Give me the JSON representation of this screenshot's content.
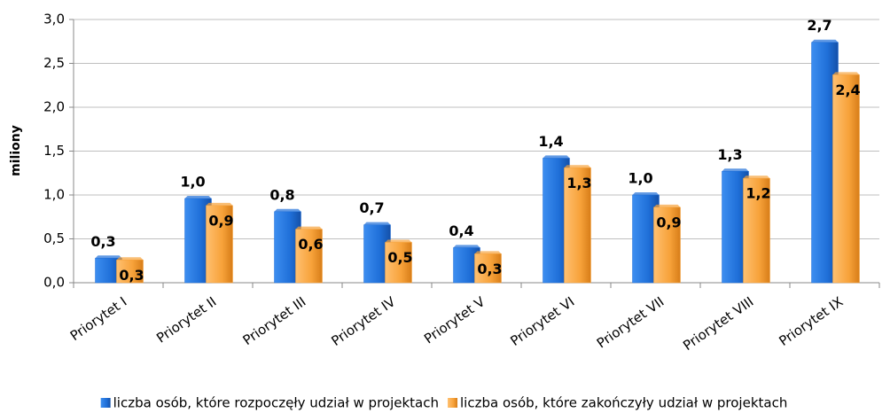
{
  "chart_data": {
    "type": "bar",
    "y_label": "miliony",
    "categories": [
      "Priorytet I",
      "Priorytet II",
      "Priorytet III",
      "Priorytet IV",
      "Priorytet V",
      "Priorytet VI",
      "Priorytet VII",
      "Priorytet VIII",
      "Priorytet IX"
    ],
    "series": [
      {
        "name": "liczba osób, które rozpoczęły udział w projektach",
        "color": "#1f6fd8",
        "values": [
          0.28,
          0.96,
          0.81,
          0.66,
          0.4,
          1.42,
          1.0,
          1.27,
          2.74
        ],
        "value_labels": [
          "0,3",
          "1,0",
          "0,8",
          "0,7",
          "0,4",
          "1,4",
          "1,0",
          "1,3",
          "2,7"
        ]
      },
      {
        "name": "liczba osób, które zakończyły udział w projektach",
        "color": "#f7a23a",
        "values": [
          0.26,
          0.88,
          0.61,
          0.46,
          0.33,
          1.31,
          0.86,
          1.19,
          2.37
        ],
        "value_labels": [
          "0,3",
          "0,9",
          "0,6",
          "0,5",
          "0,3",
          "1,3",
          "0,9",
          "1,2",
          "2,4"
        ]
      }
    ],
    "ylim": [
      0,
      3
    ],
    "yticks": [
      {
        "value": 0,
        "label": "0,0"
      },
      {
        "value": 0.5,
        "label": "0,5"
      },
      {
        "value": 1,
        "label": "1,0"
      },
      {
        "value": 1.5,
        "label": "1,5"
      },
      {
        "value": 2,
        "label": "2,0"
      },
      {
        "value": 2.5,
        "label": "2,5"
      },
      {
        "value": 3,
        "label": "3,0"
      }
    ],
    "grid": true,
    "legend": "bottom"
  }
}
